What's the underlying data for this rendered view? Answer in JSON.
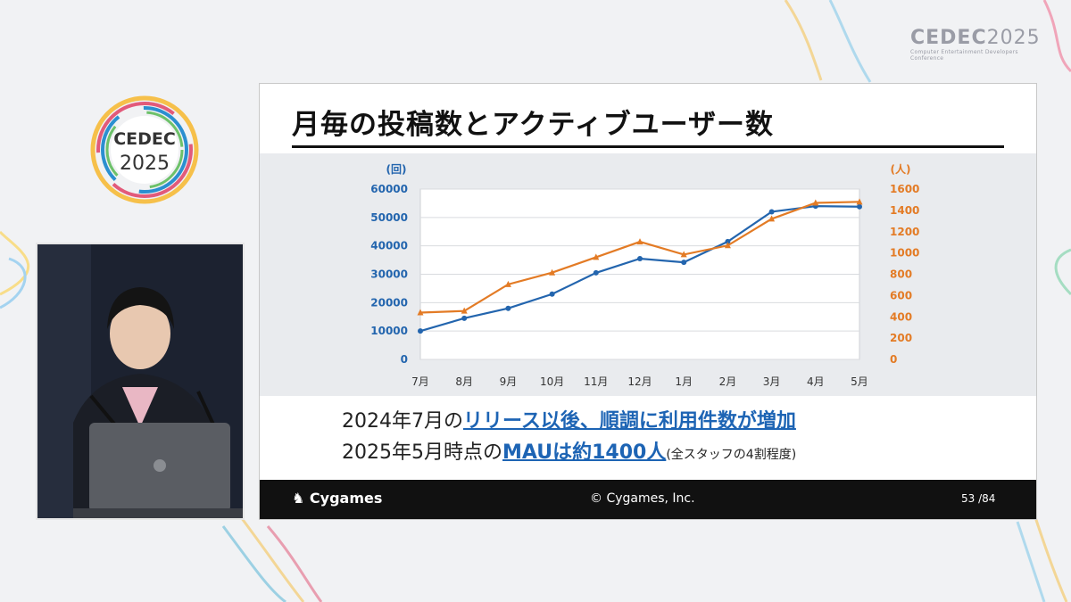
{
  "event": {
    "name_left": "CEDEC",
    "year_left": "2025",
    "name_right": "CEDEC",
    "year_right": "2025",
    "subtitle_right": "Computer Entertainment Developers Conference"
  },
  "slide": {
    "title": "月毎の投稿数とアクティブユーザー数",
    "line1_prefix": "2024年7月の",
    "line1_highlight": "リリース以後、順調に利用件数が増加",
    "line2_prefix": "2025年5月時点の",
    "line2_highlight": "MAUは約1400人",
    "line2_note": "(全スタッフの4割程度)",
    "footer_brand": "Cygames",
    "footer_copyright": "© Cygames, Inc.",
    "page": "53 /84"
  },
  "colors": {
    "posts": "#2365ae",
    "users": "#e37b25",
    "highlight": "#1d64b4"
  },
  "chart_data": {
    "type": "line",
    "categories": [
      "7月",
      "8月",
      "9月",
      "10月",
      "11月",
      "12月",
      "1月",
      "2月",
      "3月",
      "4月",
      "5月"
    ],
    "y_left_label": "(回)",
    "y_right_label": "(人)",
    "y_left_ticks": [
      "0",
      "10000",
      "20000",
      "30000",
      "40000",
      "50000",
      "60000"
    ],
    "y_right_ticks": [
      "0",
      "200",
      "400",
      "600",
      "800",
      "1000",
      "1200",
      "1400",
      "1600"
    ],
    "y_left_lim": [
      0,
      60000
    ],
    "y_right_lim": [
      0,
      1600
    ],
    "series": [
      {
        "axis": "left",
        "color": "#2365ae",
        "marker": "circle",
        "values": [
          10000,
          14500,
          18000,
          23000,
          30500,
          35500,
          34200,
          41500,
          52000,
          54000,
          53800
        ]
      },
      {
        "axis": "right",
        "color": "#e37b25",
        "marker": "triangle",
        "values": [
          440,
          455,
          705,
          815,
          960,
          1105,
          985,
          1070,
          1320,
          1470,
          1480
        ]
      }
    ],
    "grid": true
  }
}
